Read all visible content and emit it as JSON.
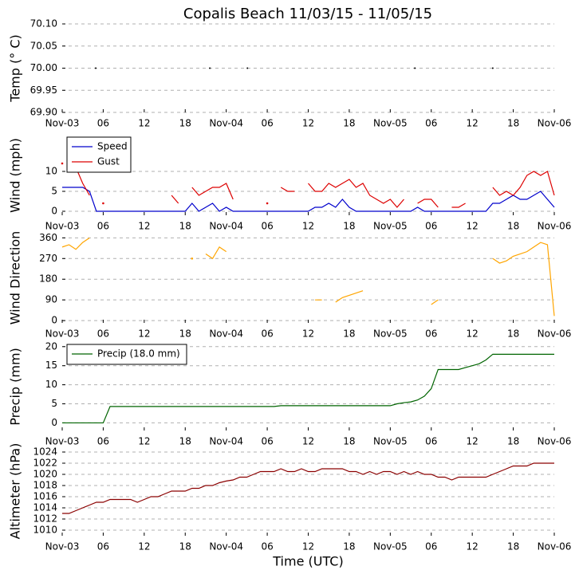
{
  "title": "Copalis Beach 11/03/15 - 11/05/15",
  "chart_data": [
    {
      "type": "scatter",
      "ylabel": "Temp (° C)",
      "color": "#000000",
      "x": [
        4.9,
        21.6,
        27.1,
        51.6,
        63
      ],
      "values": [
        70,
        70,
        70,
        70,
        70
      ],
      "xlim": [
        0,
        72
      ],
      "xticks": [
        {
          "value": 0,
          "label": "Nov-03"
        },
        {
          "value": 6,
          "label": "06"
        },
        {
          "value": 12,
          "label": "12"
        },
        {
          "value": 18,
          "label": "18"
        },
        {
          "value": 24,
          "label": "Nov-04"
        },
        {
          "value": 30,
          "label": "06"
        },
        {
          "value": 36,
          "label": "12"
        },
        {
          "value": 42,
          "label": "18"
        },
        {
          "value": 48,
          "label": "Nov-05"
        },
        {
          "value": 54,
          "label": "06"
        },
        {
          "value": 60,
          "label": "12"
        },
        {
          "value": 66,
          "label": "18"
        },
        {
          "value": 72,
          "label": "Nov-06"
        }
      ],
      "ylim": [
        69.9,
        70.1
      ],
      "yticks": [
        {
          "value": 69.9,
          "label": "69.90"
        },
        {
          "value": 69.95,
          "label": "69.95"
        },
        {
          "value": 70,
          "label": "70.00"
        },
        {
          "value": 70.05,
          "label": "70.05"
        },
        {
          "value": 70.1,
          "label": "70.10"
        }
      ],
      "grid": true
    },
    {
      "type": "line",
      "ylabel": "Wind (mph)",
      "legend": "upper left",
      "x": [
        0,
        1,
        2,
        3,
        4,
        5,
        6,
        7,
        8,
        9,
        10,
        11,
        12,
        13,
        14,
        15,
        16,
        17,
        18,
        19,
        20,
        21,
        22,
        23,
        24,
        25,
        26,
        27,
        28,
        29,
        30,
        31,
        32,
        33,
        34,
        35,
        36,
        37,
        38,
        39,
        40,
        41,
        42,
        43,
        44,
        45,
        46,
        47,
        48,
        49,
        50,
        51,
        52,
        53,
        54,
        55,
        56,
        57,
        58,
        59,
        60,
        61,
        62,
        63,
        64,
        65,
        66,
        67,
        68,
        69,
        70,
        71,
        72
      ],
      "series": [
        {
          "name": "Speed",
          "color": "#0000cc",
          "values": [
            6,
            6,
            6,
            6,
            5,
            0,
            0,
            0,
            0,
            0,
            0,
            0,
            0,
            0,
            0,
            0,
            0,
            0,
            0,
            2,
            0,
            1,
            2,
            0,
            1,
            0,
            0,
            0,
            0,
            0,
            0,
            0,
            0,
            0,
            0,
            0,
            0,
            1,
            1,
            2,
            1,
            3,
            1,
            0,
            0,
            0,
            0,
            0,
            0,
            0,
            0,
            0,
            1,
            0,
            0,
            0,
            0,
            0,
            0,
            0,
            0,
            0,
            0,
            2,
            2,
            3,
            4,
            3,
            3,
            4,
            5,
            3,
            1
          ]
        },
        {
          "name": "Gust",
          "color": "#dd0000",
          "values": [
            12,
            null,
            11,
            7,
            4,
            null,
            2,
            null,
            null,
            null,
            null,
            null,
            null,
            null,
            null,
            null,
            4,
            2,
            null,
            6,
            4,
            5,
            6,
            6,
            7,
            3,
            null,
            null,
            null,
            null,
            2,
            null,
            6,
            5,
            5,
            null,
            7,
            5,
            5,
            7,
            6,
            7,
            8,
            6,
            7,
            4,
            3,
            2,
            3,
            1,
            3,
            null,
            2,
            3,
            3,
            1,
            null,
            1,
            1,
            2,
            null,
            null,
            null,
            6,
            4,
            5,
            4,
            6,
            9,
            10,
            9,
            10,
            4
          ]
        }
      ],
      "xlim": [
        0,
        72
      ],
      "xticks": [
        {
          "value": 0,
          "label": "Nov-03"
        },
        {
          "value": 6,
          "label": "06"
        },
        {
          "value": 12,
          "label": "12"
        },
        {
          "value": 18,
          "label": "18"
        },
        {
          "value": 24,
          "label": "Nov-04"
        },
        {
          "value": 30,
          "label": "06"
        },
        {
          "value": 36,
          "label": "12"
        },
        {
          "value": 42,
          "label": "18"
        },
        {
          "value": 48,
          "label": "Nov-05"
        },
        {
          "value": 54,
          "label": "06"
        },
        {
          "value": 60,
          "label": "12"
        },
        {
          "value": 66,
          "label": "18"
        },
        {
          "value": 72,
          "label": "Nov-06"
        }
      ],
      "ylim": [
        -1,
        19
      ],
      "yticks": [
        0,
        5,
        10
      ],
      "grid": true
    },
    {
      "type": "line",
      "ylabel": "Wind Direction",
      "x": [
        0,
        1,
        2,
        3,
        4,
        5,
        6,
        7,
        8,
        9,
        10,
        11,
        12,
        13,
        14,
        15,
        16,
        17,
        18,
        19,
        20,
        21,
        22,
        23,
        24,
        25,
        26,
        27,
        28,
        29,
        30,
        31,
        32,
        33,
        34,
        35,
        36,
        37,
        38,
        39,
        40,
        41,
        42,
        43,
        44,
        45,
        46,
        47,
        48,
        49,
        50,
        51,
        52,
        53,
        54,
        55,
        56,
        57,
        58,
        59,
        60,
        61,
        62,
        63,
        64,
        65,
        66,
        67,
        68,
        69,
        70,
        71,
        72
      ],
      "series": [
        {
          "color": "#ffa500",
          "values": [
            320,
            330,
            310,
            340,
            360,
            null,
            null,
            null,
            null,
            null,
            null,
            null,
            null,
            null,
            null,
            null,
            null,
            null,
            null,
            270,
            null,
            290,
            270,
            320,
            300,
            null,
            null,
            null,
            null,
            null,
            null,
            null,
            null,
            null,
            null,
            null,
            null,
            90,
            90,
            null,
            80,
            100,
            110,
            120,
            130,
            null,
            null,
            null,
            null,
            null,
            null,
            null,
            null,
            null,
            70,
            90,
            null,
            null,
            null,
            null,
            null,
            null,
            null,
            270,
            250,
            260,
            280,
            290,
            300,
            320,
            340,
            330,
            20
          ]
        }
      ],
      "xlim": [
        0,
        72
      ],
      "xticks": [
        {
          "value": 0,
          "label": "Nov-03"
        },
        {
          "value": 6,
          "label": "06"
        },
        {
          "value": 12,
          "label": "12"
        },
        {
          "value": 18,
          "label": "18"
        },
        {
          "value": 24,
          "label": "Nov-04"
        },
        {
          "value": 30,
          "label": "06"
        },
        {
          "value": 36,
          "label": "12"
        },
        {
          "value": 42,
          "label": "18"
        },
        {
          "value": 48,
          "label": "Nov-05"
        },
        {
          "value": 54,
          "label": "06"
        },
        {
          "value": 60,
          "label": "12"
        },
        {
          "value": 66,
          "label": "18"
        },
        {
          "value": 72,
          "label": "Nov-06"
        }
      ],
      "ylim": [
        -10,
        382
      ],
      "yticks": [
        0,
        90,
        180,
        270,
        360
      ],
      "grid": true
    },
    {
      "type": "line",
      "ylabel": "Precip (mm)",
      "legend": "upper left",
      "x": [
        0,
        1,
        2,
        3,
        4,
        5,
        6,
        7,
        8,
        9,
        10,
        11,
        12,
        13,
        14,
        15,
        16,
        17,
        18,
        19,
        20,
        21,
        22,
        23,
        24,
        25,
        26,
        27,
        28,
        29,
        30,
        31,
        32,
        33,
        34,
        35,
        36,
        37,
        38,
        39,
        40,
        41,
        42,
        43,
        44,
        45,
        46,
        47,
        48,
        49,
        50,
        51,
        52,
        53,
        54,
        55,
        56,
        57,
        58,
        59,
        60,
        61,
        62,
        63,
        64,
        65,
        66,
        67,
        68,
        69,
        70,
        71,
        72
      ],
      "series": [
        {
          "name": "Precip (18.0 mm)",
          "color": "#006400",
          "values": [
            0,
            0,
            0,
            0,
            0,
            0,
            0,
            4.3,
            4.3,
            4.3,
            4.3,
            4.3,
            4.3,
            4.3,
            4.3,
            4.3,
            4.3,
            4.3,
            4.3,
            4.3,
            4.3,
            4.3,
            4.3,
            4.3,
            4.3,
            4.3,
            4.3,
            4.3,
            4.3,
            4.3,
            4.3,
            4.3,
            4.5,
            4.5,
            4.5,
            4.5,
            4.5,
            4.5,
            4.5,
            4.5,
            4.5,
            4.5,
            4.5,
            4.5,
            4.5,
            4.5,
            4.5,
            4.5,
            4.5,
            5,
            5.3,
            5.5,
            6,
            7,
            9,
            14,
            14,
            14,
            14,
            14.5,
            15,
            15.5,
            16.5,
            18,
            18,
            18,
            18,
            18,
            18,
            18,
            18,
            18,
            18
          ]
        }
      ],
      "xlim": [
        0,
        72
      ],
      "xticks": [
        {
          "value": 0,
          "label": "Nov-03"
        },
        {
          "value": 6,
          "label": "06"
        },
        {
          "value": 12,
          "label": "12"
        },
        {
          "value": 18,
          "label": "18"
        },
        {
          "value": 24,
          "label": "Nov-04"
        },
        {
          "value": 30,
          "label": "06"
        },
        {
          "value": 36,
          "label": "12"
        },
        {
          "value": 42,
          "label": "18"
        },
        {
          "value": 48,
          "label": "Nov-05"
        },
        {
          "value": 54,
          "label": "06"
        },
        {
          "value": 60,
          "label": "12"
        },
        {
          "value": 66,
          "label": "18"
        },
        {
          "value": 72,
          "label": "Nov-06"
        }
      ],
      "ylim": [
        -2,
        21
      ],
      "yticks": [
        0,
        5,
        10,
        15,
        20
      ],
      "grid": true
    },
    {
      "type": "line",
      "ylabel": "Altimeter (hPa)",
      "xlabel": "Time (UTC)",
      "x": [
        0,
        1,
        2,
        3,
        4,
        5,
        6,
        7,
        8,
        9,
        10,
        11,
        12,
        13,
        14,
        15,
        16,
        17,
        18,
        19,
        20,
        21,
        22,
        23,
        24,
        25,
        26,
        27,
        28,
        29,
        30,
        31,
        32,
        33,
        34,
        35,
        36,
        37,
        38,
        39,
        40,
        41,
        42,
        43,
        44,
        45,
        46,
        47,
        48,
        49,
        50,
        51,
        52,
        53,
        54,
        55,
        56,
        57,
        58,
        59,
        60,
        61,
        62,
        63,
        64,
        65,
        66,
        67,
        68,
        69,
        70,
        71,
        72
      ],
      "series": [
        {
          "color": "#8b0000",
          "values": [
            1013,
            1013,
            1013.5,
            1014,
            1014.5,
            1015,
            1015,
            1015.5,
            1015.5,
            1015.5,
            1015.5,
            1015,
            1015.5,
            1016,
            1016,
            1016.5,
            1017,
            1017,
            1017,
            1017.5,
            1017.5,
            1018,
            1018,
            1018.5,
            1018.8,
            1019,
            1019.5,
            1019.5,
            1020,
            1020.5,
            1020.5,
            1020.5,
            1021,
            1020.5,
            1020.5,
            1021,
            1020.5,
            1020.5,
            1021,
            1021,
            1021,
            1021,
            1020.5,
            1020.5,
            1020,
            1020.5,
            1020,
            1020.5,
            1020.5,
            1020,
            1020.5,
            1020,
            1020.5,
            1020,
            1020,
            1019.5,
            1019.5,
            1019,
            1019.5,
            1019.5,
            1019.5,
            1019.5,
            1019.5,
            1020,
            1020.5,
            1021,
            1021.5,
            1021.5,
            1021.5,
            1022,
            1022,
            1022,
            1022
          ]
        }
      ],
      "xlim": [
        0,
        72
      ],
      "xticks": [
        {
          "value": 0,
          "label": "Nov-03"
        },
        {
          "value": 6,
          "label": "06"
        },
        {
          "value": 12,
          "label": "12"
        },
        {
          "value": 18,
          "label": "18"
        },
        {
          "value": 24,
          "label": "Nov-04"
        },
        {
          "value": 30,
          "label": "06"
        },
        {
          "value": 36,
          "label": "12"
        },
        {
          "value": 42,
          "label": "18"
        },
        {
          "value": 48,
          "label": "Nov-05"
        },
        {
          "value": 54,
          "label": "06"
        },
        {
          "value": 60,
          "label": "12"
        },
        {
          "value": 66,
          "label": "18"
        },
        {
          "value": 72,
          "label": "Nov-06"
        }
      ],
      "ylim": [
        1009,
        1025
      ],
      "yticks": [
        1010,
        1012,
        1014,
        1016,
        1018,
        1020,
        1022,
        1024
      ],
      "grid": true
    }
  ]
}
